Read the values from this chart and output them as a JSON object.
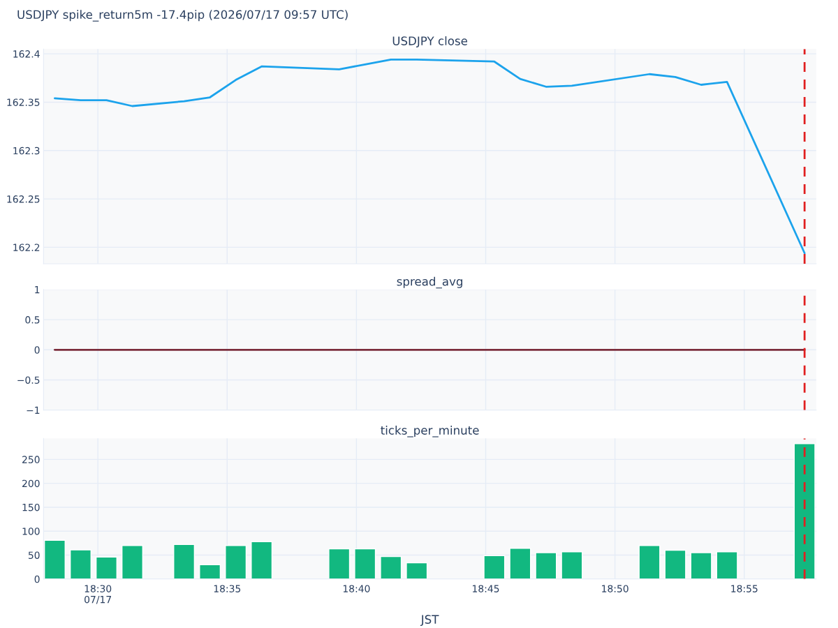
{
  "chart_data": [
    {
      "type": "line",
      "title": "USDJPY close",
      "annotations": [
        "USDJPY spike_return5m -17.4pip (2026/07/17 09:57 UTC)"
      ],
      "x": [
        "2026-07-17T18:28:20",
        "2026-07-17T18:29:20",
        "2026-07-17T18:30:20",
        "2026-07-17T18:31:20",
        "2026-07-17T18:33:20",
        "2026-07-17T18:34:20",
        "2026-07-17T18:35:20",
        "2026-07-17T18:36:20",
        "2026-07-17T18:39:20",
        "2026-07-17T18:40:20",
        "2026-07-17T18:41:20",
        "2026-07-17T18:42:20",
        "2026-07-17T18:45:20",
        "2026-07-17T18:46:20",
        "2026-07-17T18:47:20",
        "2026-07-17T18:48:20",
        "2026-07-17T18:51:20",
        "2026-07-17T18:52:20",
        "2026-07-17T18:53:20",
        "2026-07-17T18:54:20",
        "2026-07-17T18:57:20"
      ],
      "series": [
        {
          "color": "#1ca3ec",
          "values": [
            162.354,
            162.352,
            162.352,
            162.346,
            162.351,
            162.355,
            162.373,
            162.387,
            162.384,
            162.389,
            162.394,
            162.394,
            162.392,
            162.374,
            162.366,
            162.367,
            162.379,
            162.376,
            162.368,
            162.371,
            162.194
          ]
        }
      ],
      "xlim": [
        "2026-07-17T18:27:54",
        "2026-07-17T18:57:47"
      ],
      "xticks": [
        {
          "value": "2026-07-17T18:30",
          "label": null
        },
        {
          "value": "2026-07-17T18:35",
          "label": null
        },
        {
          "value": "2026-07-17T18:40",
          "label": null
        },
        {
          "value": "2026-07-17T18:45",
          "label": null
        },
        {
          "value": "2026-07-17T18:50",
          "label": null
        },
        {
          "value": "2026-07-17T18:55",
          "label": null
        }
      ],
      "ylim": [
        162.183,
        162.405
      ],
      "yticks": [
        162.2,
        162.25,
        162.3,
        162.35,
        162.4
      ],
      "tick_labels": "y",
      "grid": true,
      "ref_lines": [
        {
          "axis": "x",
          "value": "2026-07-17T18:57:20",
          "color": "#e02020",
          "line_style": "dashed"
        }
      ]
    },
    {
      "type": "line",
      "title": "spread_avg",
      "x": [
        "2026-07-17T18:28:20",
        "2026-07-17T18:29:20",
        "2026-07-17T18:30:20",
        "2026-07-17T18:31:20",
        "2026-07-17T18:33:20",
        "2026-07-17T18:34:20",
        "2026-07-17T18:35:20",
        "2026-07-17T18:36:20",
        "2026-07-17T18:39:20",
        "2026-07-17T18:40:20",
        "2026-07-17T18:41:20",
        "2026-07-17T18:42:20",
        "2026-07-17T18:45:20",
        "2026-07-17T18:46:20",
        "2026-07-17T18:47:20",
        "2026-07-17T18:48:20",
        "2026-07-17T18:51:20",
        "2026-07-17T18:52:20",
        "2026-07-17T18:53:20",
        "2026-07-17T18:54:20",
        "2026-07-17T18:57:20"
      ],
      "series": [
        {
          "color": "#7b2d3b",
          "values": [
            0,
            0,
            0,
            0,
            0,
            0,
            0,
            0,
            0,
            0,
            0,
            0,
            0,
            0,
            0,
            0,
            0,
            0,
            0,
            0,
            0
          ]
        }
      ],
      "xlim": [
        "2026-07-17T18:27:54",
        "2026-07-17T18:57:47"
      ],
      "xticks": [
        {
          "value": "2026-07-17T18:30",
          "label": null
        },
        {
          "value": "2026-07-17T18:35",
          "label": null
        },
        {
          "value": "2026-07-17T18:40",
          "label": null
        },
        {
          "value": "2026-07-17T18:45",
          "label": null
        },
        {
          "value": "2026-07-17T18:50",
          "label": null
        },
        {
          "value": "2026-07-17T18:55",
          "label": null
        }
      ],
      "ylim": [
        -1,
        1
      ],
      "yticks": [
        {
          "value": -1,
          "label": "−1"
        },
        {
          "value": -0.5,
          "label": "−0.5"
        },
        0,
        0.5,
        1
      ],
      "tick_labels": "y",
      "grid": true,
      "ref_lines": [
        {
          "axis": "x",
          "value": "2026-07-17T18:57:20",
          "color": "#e02020",
          "line_style": "dashed"
        }
      ]
    },
    {
      "type": "bar",
      "title": "ticks_per_minute",
      "xlabel": "JST",
      "x": [
        "2026-07-17T18:28:20",
        "2026-07-17T18:29:20",
        "2026-07-17T18:30:20",
        "2026-07-17T18:31:20",
        "2026-07-17T18:33:20",
        "2026-07-17T18:34:20",
        "2026-07-17T18:35:20",
        "2026-07-17T18:36:20",
        "2026-07-17T18:39:20",
        "2026-07-17T18:40:20",
        "2026-07-17T18:41:20",
        "2026-07-17T18:42:20",
        "2026-07-17T18:45:20",
        "2026-07-17T18:46:20",
        "2026-07-17T18:47:20",
        "2026-07-17T18:48:20",
        "2026-07-17T18:51:20",
        "2026-07-17T18:52:20",
        "2026-07-17T18:53:20",
        "2026-07-17T18:54:20",
        "2026-07-17T18:57:20"
      ],
      "series": [
        {
          "color": "#12b880",
          "values": [
            81,
            61,
            46,
            70,
            72,
            30,
            70,
            78,
            63,
            63,
            47,
            34,
            49,
            64,
            55,
            57,
            70,
            60,
            55,
            57,
            283
          ]
        }
      ],
      "xlim": [
        "2026-07-17T18:27:54",
        "2026-07-17T18:57:47"
      ],
      "xticks": [
        {
          "value": "2026-07-17T18:30",
          "label": "18:30\n07/17"
        },
        {
          "value": "2026-07-17T18:35",
          "label": "18:35"
        },
        {
          "value": "2026-07-17T18:40",
          "label": "18:40"
        },
        {
          "value": "2026-07-17T18:45",
          "label": "18:45"
        },
        {
          "value": "2026-07-17T18:50",
          "label": "18:50"
        },
        {
          "value": "2026-07-17T18:55",
          "label": "18:55"
        }
      ],
      "ylim": [
        0,
        294
      ],
      "yticks": [
        0,
        50,
        100,
        150,
        200,
        250
      ],
      "grid": true,
      "ref_lines": [
        {
          "axis": "x",
          "value": "2026-07-17T18:57:20",
          "color": "#e02020",
          "line_style": "dashed"
        }
      ]
    }
  ]
}
